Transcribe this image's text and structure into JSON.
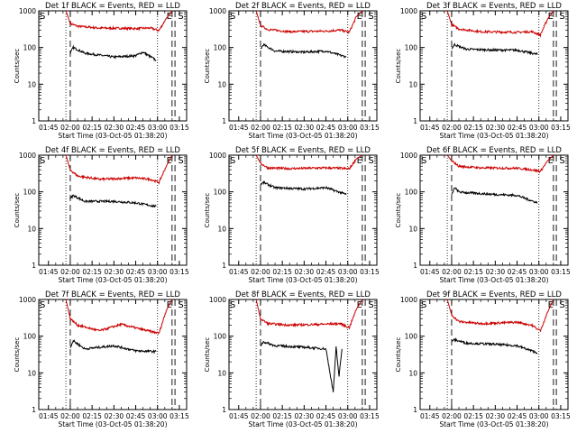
{
  "shared": {
    "title_template": "Det {det} BLACK = Events, RED = LLD",
    "xlabel": "Start Time (03-Oct-05 01:38:20)",
    "ylabel": "Counts/sec",
    "x_ticks": [
      "01:45",
      "02:00",
      "02:15",
      "02:30",
      "02:45",
      "03:00",
      "03:15"
    ],
    "y_ticks": [
      "1",
      "10",
      "100",
      "1000"
    ],
    "xlim": [
      "01:38:20",
      "03:20:00"
    ],
    "ylim": [
      1,
      1000
    ],
    "yscale": "log",
    "markers": {
      "S": "S",
      "E": "E"
    },
    "colors": {
      "events": "#000000",
      "lld": "#cc0000",
      "axes": "#000000"
    }
  },
  "chart_data": [
    {
      "type": "line",
      "title": "Det 1f BLACK = Events, RED = LLD",
      "detector": "1f",
      "xlabel": "Start Time (03-Oct-05 01:38:20)",
      "ylabel": "Counts/sec",
      "x_ticks": [
        "01:45",
        "02:00",
        "02:15",
        "02:30",
        "02:45",
        "03:00",
        "03:15"
      ],
      "y_ticks": [
        "1",
        "10",
        "100",
        "1000"
      ],
      "yscale": "log",
      "dotted_lines": [
        "01:57",
        "03:00"
      ],
      "dashed_lines": [
        "02:00",
        "03:10",
        "03:12"
      ],
      "series": [
        {
          "color": "#cc0000",
          "x": [
            "01:57",
            "02:00",
            "02:05",
            "02:20",
            "02:45",
            "02:55",
            "03:01",
            "03:06",
            "03:10"
          ],
          "y": [
            1000,
            450,
            380,
            340,
            330,
            340,
            290,
            620,
            1000
          ]
        },
        {
          "color": "#000000",
          "x": [
            "02:00",
            "02:02",
            "02:10",
            "02:30",
            "02:45",
            "02:50",
            "02:59"
          ],
          "y": [
            70,
            100,
            70,
            55,
            60,
            75,
            45
          ]
        }
      ]
    },
    {
      "type": "line",
      "title": "Det 2f BLACK = Events, RED = LLD",
      "detector": "2f",
      "xlabel": "Start Time (03-Oct-05 01:38:20)",
      "ylabel": "Counts/sec",
      "x_ticks": [
        "01:45",
        "02:00",
        "02:15",
        "02:30",
        "02:45",
        "03:00",
        "03:15"
      ],
      "y_ticks": [
        "1",
        "10",
        "100",
        "1000"
      ],
      "yscale": "log",
      "dotted_lines": [
        "01:57",
        "03:00"
      ],
      "dashed_lines": [
        "02:00",
        "03:10",
        "03:12"
      ],
      "series": [
        {
          "color": "#cc0000",
          "x": [
            "01:57",
            "02:00",
            "02:05",
            "02:20",
            "02:45",
            "02:55",
            "03:01",
            "03:06",
            "03:10"
          ],
          "y": [
            1000,
            400,
            310,
            270,
            280,
            300,
            260,
            700,
            1000
          ]
        },
        {
          "color": "#000000",
          "x": [
            "02:00",
            "02:02",
            "02:10",
            "02:30",
            "02:45",
            "02:59"
          ],
          "y": [
            90,
            120,
            80,
            75,
            80,
            55
          ]
        }
      ]
    },
    {
      "type": "line",
      "title": "Det 3f BLACK = Events, RED = LLD",
      "detector": "3f",
      "xlabel": "Start Time (03-Oct-05 01:38:20)",
      "ylabel": "Counts/sec",
      "x_ticks": [
        "01:45",
        "02:00",
        "02:15",
        "02:30",
        "02:45",
        "03:00",
        "03:15"
      ],
      "y_ticks": [
        "1",
        "10",
        "100",
        "1000"
      ],
      "yscale": "log",
      "dotted_lines": [
        "01:57",
        "03:00"
      ],
      "dashed_lines": [
        "02:00",
        "03:10",
        "03:12"
      ],
      "series": [
        {
          "color": "#cc0000",
          "x": [
            "01:57",
            "02:00",
            "02:05",
            "02:20",
            "02:45",
            "02:55",
            "03:01",
            "03:06",
            "03:10"
          ],
          "y": [
            1000,
            420,
            320,
            270,
            260,
            270,
            220,
            600,
            1000
          ]
        },
        {
          "color": "#000000",
          "x": [
            "02:00",
            "02:02",
            "02:10",
            "02:30",
            "02:45",
            "02:59"
          ],
          "y": [
            95,
            120,
            90,
            85,
            85,
            65
          ]
        }
      ]
    },
    {
      "type": "line",
      "title": "Det 4f BLACK = Events, RED = LLD",
      "detector": "4f",
      "xlabel": "Start Time (03-Oct-05 01:38:20)",
      "ylabel": "Counts/sec",
      "x_ticks": [
        "01:45",
        "02:00",
        "02:15",
        "02:30",
        "02:45",
        "03:00",
        "03:15"
      ],
      "y_ticks": [
        "1",
        "10",
        "100",
        "1000"
      ],
      "yscale": "log",
      "dotted_lines": [
        "01:57",
        "03:00"
      ],
      "dashed_lines": [
        "02:00",
        "03:10",
        "03:12"
      ],
      "series": [
        {
          "color": "#cc0000",
          "x": [
            "01:57",
            "02:00",
            "02:05",
            "02:20",
            "02:45",
            "02:55",
            "03:01",
            "03:06",
            "03:10"
          ],
          "y": [
            1000,
            400,
            270,
            220,
            240,
            220,
            180,
            500,
            1000
          ]
        },
        {
          "color": "#000000",
          "x": [
            "02:00",
            "02:02",
            "02:10",
            "02:30",
            "02:45",
            "02:59"
          ],
          "y": [
            65,
            80,
            55,
            55,
            50,
            40
          ]
        }
      ]
    },
    {
      "type": "line",
      "title": "Det 5f BLACK = Events, RED = LLD",
      "detector": "5f",
      "xlabel": "Start Time (03-Oct-05 01:38:20)",
      "ylabel": "Counts/sec",
      "x_ticks": [
        "01:45",
        "02:00",
        "02:15",
        "02:30",
        "02:45",
        "03:00",
        "03:15"
      ],
      "y_ticks": [
        "1",
        "10",
        "100",
        "1000"
      ],
      "yscale": "log",
      "dotted_lines": [
        "01:57",
        "03:00"
      ],
      "dashed_lines": [
        "02:00",
        "03:10",
        "03:12"
      ],
      "series": [
        {
          "color": "#cc0000",
          "x": [
            "01:57",
            "02:00",
            "02:05",
            "02:20",
            "02:45",
            "02:55",
            "03:01",
            "03:06",
            "03:10"
          ],
          "y": [
            1000,
            600,
            450,
            430,
            450,
            440,
            420,
            800,
            1000
          ]
        },
        {
          "color": "#000000",
          "x": [
            "02:00",
            "02:02",
            "02:10",
            "02:30",
            "02:45",
            "02:59"
          ],
          "y": [
            160,
            180,
            130,
            120,
            130,
            85
          ]
        }
      ]
    },
    {
      "type": "line",
      "title": "Det 6f BLACK = Events, RED = LLD",
      "detector": "6f",
      "xlabel": "Start Time (03-Oct-05 01:38:20)",
      "ylabel": "Counts/sec",
      "x_ticks": [
        "01:45",
        "02:00",
        "02:15",
        "02:30",
        "02:45",
        "03:00",
        "03:15"
      ],
      "y_ticks": [
        "1",
        "10",
        "100",
        "1000"
      ],
      "yscale": "log",
      "dotted_lines": [
        "01:57",
        "03:00"
      ],
      "dashed_lines": [
        "02:00",
        "03:10",
        "03:12"
      ],
      "series": [
        {
          "color": "#cc0000",
          "x": [
            "01:57",
            "02:00",
            "02:05",
            "02:20",
            "02:45",
            "02:55",
            "03:01",
            "03:06",
            "03:10"
          ],
          "y": [
            1000,
            700,
            500,
            450,
            440,
            400,
            360,
            700,
            1000
          ]
        },
        {
          "color": "#000000",
          "x": [
            "02:00",
            "02:02",
            "02:05",
            "02:10",
            "02:30",
            "02:45",
            "02:59"
          ],
          "y": [
            80,
            130,
            100,
            95,
            85,
            80,
            50
          ]
        }
      ]
    },
    {
      "type": "line",
      "title": "Det 7f BLACK = Events, RED = LLD",
      "detector": "7f",
      "xlabel": "Start Time (03-Oct-05 01:38:20)",
      "ylabel": "Counts/sec",
      "x_ticks": [
        "01:45",
        "02:00",
        "02:15",
        "02:30",
        "02:45",
        "03:00",
        "03:15"
      ],
      "y_ticks": [
        "1",
        "10",
        "100",
        "1000"
      ],
      "yscale": "log",
      "dotted_lines": [
        "01:57",
        "03:00"
      ],
      "dashed_lines": [
        "02:00",
        "03:10",
        "03:12"
      ],
      "series": [
        {
          "color": "#cc0000",
          "x": [
            "01:57",
            "02:00",
            "02:05",
            "02:20",
            "02:35",
            "02:50",
            "03:01",
            "03:06",
            "03:10"
          ],
          "y": [
            1000,
            300,
            200,
            140,
            210,
            150,
            120,
            500,
            1000
          ]
        },
        {
          "color": "#000000",
          "x": [
            "02:00",
            "02:02",
            "02:10",
            "02:30",
            "02:45",
            "02:59"
          ],
          "y": [
            50,
            75,
            45,
            55,
            40,
            38
          ]
        }
      ]
    },
    {
      "type": "line",
      "title": "Det 8f BLACK = Events, RED = LLD",
      "detector": "8f",
      "xlabel": "Start Time (03-Oct-05 01:38:20)",
      "ylabel": "Counts/sec",
      "x_ticks": [
        "01:45",
        "02:00",
        "02:15",
        "02:30",
        "02:45",
        "03:00",
        "03:15"
      ],
      "y_ticks": [
        "1",
        "10",
        "100",
        "1000"
      ],
      "yscale": "log",
      "dotted_lines": [
        "01:57",
        "03:00"
      ],
      "dashed_lines": [
        "02:00",
        "03:10",
        "03:12"
      ],
      "series": [
        {
          "color": "#cc0000",
          "x": [
            "01:57",
            "02:00",
            "02:05",
            "02:20",
            "02:40",
            "02:55",
            "03:01",
            "03:06",
            "03:10"
          ],
          "y": [
            1000,
            300,
            220,
            200,
            210,
            220,
            170,
            550,
            1000
          ]
        },
        {
          "color": "#000000",
          "x": [
            "02:00",
            "02:02",
            "02:10",
            "02:30",
            "02:45",
            "02:50",
            "02:52",
            "02:54",
            "02:56"
          ],
          "y": [
            55,
            70,
            55,
            50,
            45,
            3,
            50,
            8,
            45
          ]
        }
      ]
    },
    {
      "type": "line",
      "title": "Det 9f BLACK = Events, RED = LLD",
      "detector": "9f",
      "xlabel": "Start Time (03-Oct-05 01:38:20)",
      "ylabel": "Counts/sec",
      "x_ticks": [
        "01:45",
        "02:00",
        "02:15",
        "02:30",
        "02:45",
        "03:00",
        "03:15"
      ],
      "y_ticks": [
        "1",
        "10",
        "100",
        "1000"
      ],
      "yscale": "log",
      "dotted_lines": [
        "01:57",
        "03:00"
      ],
      "dashed_lines": [
        "02:00",
        "03:10",
        "03:12"
      ],
      "series": [
        {
          "color": "#cc0000",
          "x": [
            "01:57",
            "02:00",
            "02:05",
            "02:20",
            "02:45",
            "02:55",
            "03:01",
            "03:06",
            "03:10"
          ],
          "y": [
            1000,
            380,
            250,
            220,
            240,
            200,
            140,
            450,
            1000
          ]
        },
        {
          "color": "#000000",
          "x": [
            "02:00",
            "02:02",
            "02:10",
            "02:30",
            "02:45",
            "02:59"
          ],
          "y": [
            75,
            80,
            65,
            60,
            55,
            35
          ]
        }
      ]
    }
  ]
}
